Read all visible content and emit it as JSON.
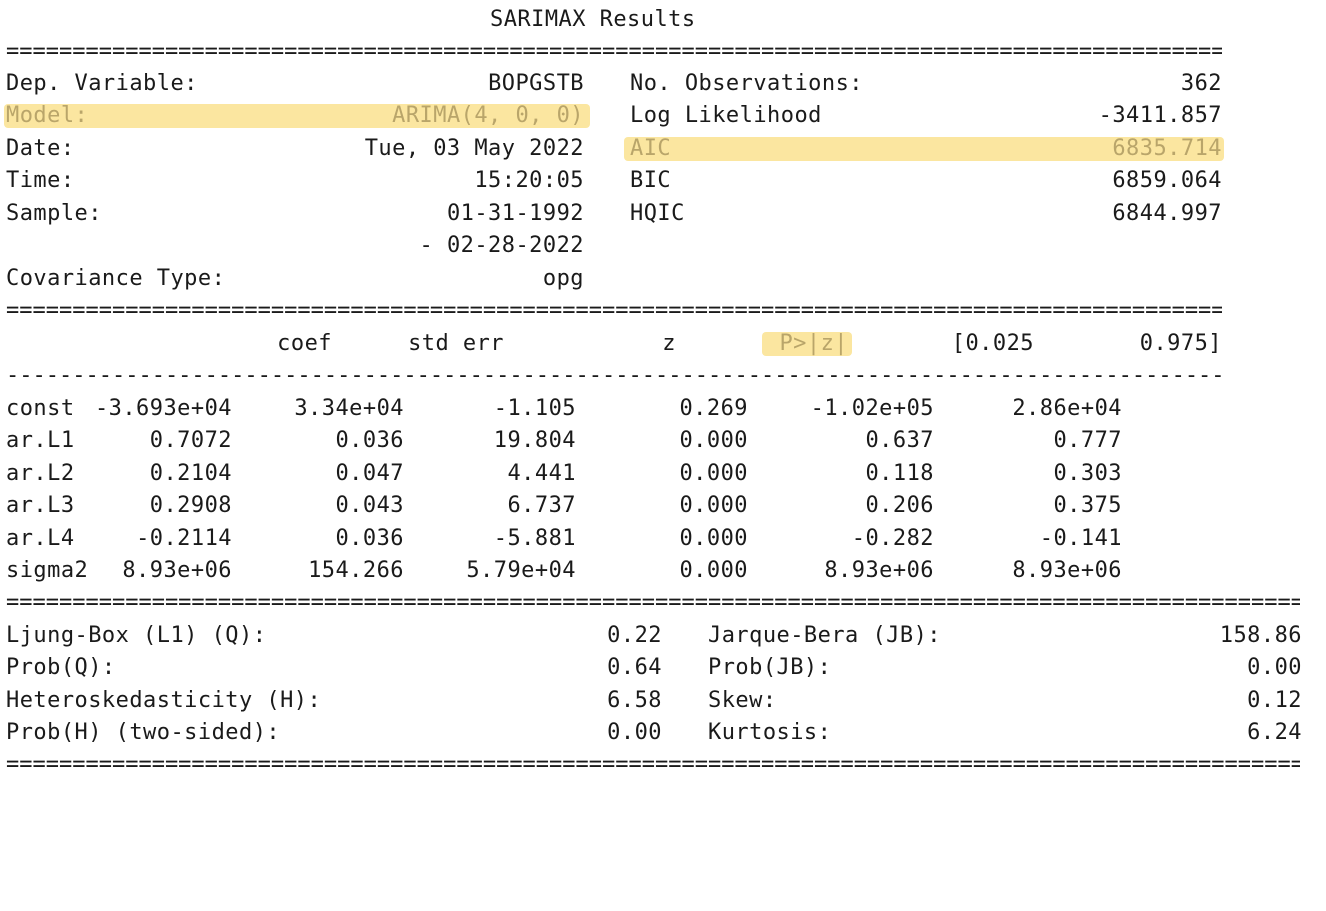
{
  "title": "SARIMAX Results",
  "highlight_color": "#fbe6a0",
  "highlight_text_color": "#b9a56a",
  "rules": {
    "double": "========================================================================================================================",
    "single": "------------------------------------------------------------------------------------------------------------------------"
  },
  "summary": {
    "left": [
      {
        "label": "Dep. Variable:",
        "value": "BOPGSTB"
      },
      {
        "label": "Model:",
        "value": "ARIMA(4, 0, 0)"
      },
      {
        "label": "Date:",
        "value": "Tue, 03 May 2022"
      },
      {
        "label": "Time:",
        "value": "15:20:05"
      },
      {
        "label": "Sample:",
        "value": "01-31-1992"
      },
      {
        "label": "",
        "value": "- 02-28-2022"
      },
      {
        "label": "Covariance Type:",
        "value": "opg"
      }
    ],
    "right": [
      {
        "label": "No. Observations:",
        "value": "362"
      },
      {
        "label": "Log Likelihood",
        "value": "-3411.857"
      },
      {
        "label": "AIC",
        "value": "6835.714"
      },
      {
        "label": "BIC",
        "value": "6859.064"
      },
      {
        "label": "HQIC",
        "value": "6844.997"
      }
    ]
  },
  "coef_table": {
    "headers": [
      "coef",
      "std err",
      "z",
      "P>|z|",
      "[0.025",
      "0.975]"
    ],
    "rows": [
      {
        "name": "const",
        "values": [
          "-3.693e+04",
          "3.34e+04",
          "-1.105",
          "0.269",
          "-1.02e+05",
          "2.86e+04"
        ]
      },
      {
        "name": "ar.L1",
        "values": [
          "0.7072",
          "0.036",
          "19.804",
          "0.000",
          "0.637",
          "0.777"
        ]
      },
      {
        "name": "ar.L2",
        "values": [
          "0.2104",
          "0.047",
          "4.441",
          "0.000",
          "0.118",
          "0.303"
        ]
      },
      {
        "name": "ar.L3",
        "values": [
          "0.2908",
          "0.043",
          "6.737",
          "0.000",
          "0.206",
          "0.375"
        ]
      },
      {
        "name": "ar.L4",
        "values": [
          "-0.2114",
          "0.036",
          "-5.881",
          "0.000",
          "-0.282",
          "-0.141"
        ]
      },
      {
        "name": "sigma2",
        "values": [
          "8.93e+06",
          "154.266",
          "5.79e+04",
          "0.000",
          "8.93e+06",
          "8.93e+06"
        ]
      }
    ]
  },
  "diagnostics": {
    "left": [
      {
        "label": "Ljung-Box (L1) (Q):",
        "value": "0.22"
      },
      {
        "label": "Prob(Q):",
        "value": "0.64"
      },
      {
        "label": "Heteroskedasticity (H):",
        "value": "6.58"
      },
      {
        "label": "Prob(H) (two-sided):",
        "value": "0.00"
      }
    ],
    "right": [
      {
        "label": "Jarque-Bera (JB):",
        "value": "158.86"
      },
      {
        "label": "Prob(JB):",
        "value": "0.00"
      },
      {
        "label": "Skew:",
        "value": "0.12"
      },
      {
        "label": "Kurtosis:",
        "value": "6.24"
      }
    ]
  }
}
